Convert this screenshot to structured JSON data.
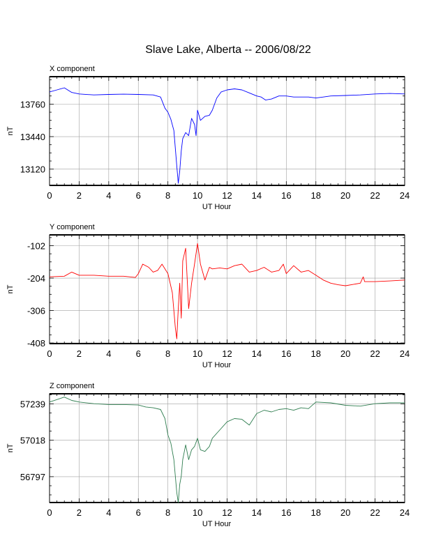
{
  "title": "Slave Lake, Alberta -- 2006/08/22",
  "chart_data": [
    {
      "type": "line",
      "component_label": "X component",
      "xlabel": "UT Hour",
      "ylabel": "nT",
      "xlim": [
        0,
        24
      ],
      "ylim": [
        12960,
        14030
      ],
      "x_ticks": [
        "0",
        "2",
        "4",
        "6",
        "8",
        "10",
        "12",
        "14",
        "16",
        "18",
        "20",
        "22",
        "24"
      ],
      "y_ticks": [
        {
          "value": 13120,
          "label": "13120"
        },
        {
          "value": 13440,
          "label": "13440"
        },
        {
          "value": 13760,
          "label": "13760"
        }
      ],
      "grid": true,
      "color": "#0000ff",
      "x": [
        0,
        0.5,
        1,
        1.5,
        2,
        3,
        4,
        5,
        6,
        7,
        7.5,
        7.8,
        8,
        8.2,
        8.4,
        8.6,
        8.7,
        8.8,
        8.9,
        9,
        9.2,
        9.4,
        9.6,
        9.8,
        9.9,
        10,
        10.2,
        10.5,
        10.8,
        11,
        11.3,
        11.6,
        12,
        12.5,
        13,
        13.5,
        14,
        14.3,
        14.6,
        15,
        15.5,
        16,
        16.5,
        17,
        17.5,
        18,
        18.5,
        19,
        20,
        21,
        22,
        23,
        24
      ],
      "y": [
        13880,
        13900,
        13920,
        13875,
        13860,
        13850,
        13855,
        13858,
        13855,
        13850,
        13830,
        13720,
        13680,
        13610,
        13500,
        13150,
        12980,
        13100,
        13300,
        13420,
        13480,
        13450,
        13620,
        13560,
        13450,
        13700,
        13600,
        13640,
        13650,
        13700,
        13820,
        13880,
        13900,
        13910,
        13900,
        13870,
        13840,
        13830,
        13800,
        13810,
        13840,
        13840,
        13830,
        13830,
        13830,
        13820,
        13830,
        13840,
        13845,
        13850,
        13860,
        13865,
        13860
      ]
    },
    {
      "type": "line",
      "component_label": "Y component",
      "xlabel": "UT Hour",
      "ylabel": "nT",
      "xlim": [
        0,
        24
      ],
      "ylim": [
        -410,
        -68
      ],
      "x_ticks": [
        "0",
        "2",
        "4",
        "6",
        "8",
        "10",
        "12",
        "14",
        "16",
        "18",
        "20",
        "22",
        "24"
      ],
      "y_ticks": [
        {
          "value": -102,
          "label": "-102"
        },
        {
          "value": -204,
          "label": "-204"
        },
        {
          "value": -306,
          "label": "-306"
        },
        {
          "value": -408,
          "label": "-408"
        }
      ],
      "grid": true,
      "color": "#ff0000",
      "x": [
        0,
        1,
        1.5,
        2,
        3,
        4,
        5,
        5.8,
        6,
        6.3,
        6.7,
        7,
        7.3,
        7.6,
        8,
        8.3,
        8.5,
        8.6,
        8.7,
        8.8,
        8.9,
        9,
        9.2,
        9.4,
        9.6,
        9.8,
        10,
        10.2,
        10.5,
        10.8,
        11,
        11.5,
        12,
        12.5,
        13,
        13.5,
        14,
        14.5,
        15,
        15.5,
        15.8,
        16,
        16.5,
        17,
        17.5,
        18,
        18.5,
        19,
        19.5,
        20,
        21,
        21.2,
        21.3,
        22,
        23,
        24
      ],
      "y": [
        -200,
        -198,
        -185,
        -195,
        -195,
        -198,
        -198,
        -202,
        -190,
        -160,
        -170,
        -185,
        -180,
        -160,
        -190,
        -250,
        -360,
        -395,
        -300,
        -220,
        -330,
        -150,
        -110,
        -300,
        -220,
        -160,
        -95,
        -160,
        -210,
        -170,
        -175,
        -172,
        -175,
        -165,
        -160,
        -185,
        -180,
        -170,
        -185,
        -180,
        -160,
        -190,
        -165,
        -185,
        -180,
        -195,
        -210,
        -220,
        -225,
        -228,
        -220,
        -200,
        -215,
        -215,
        -213,
        -210
      ]
    },
    {
      "type": "line",
      "component_label": "Z component",
      "xlabel": "UT Hour",
      "ylabel": "nT",
      "xlim": [
        0,
        24
      ],
      "ylim": [
        56640,
        57300
      ],
      "x_ticks": [
        "0",
        "2",
        "4",
        "6",
        "8",
        "10",
        "12",
        "14",
        "16",
        "18",
        "20",
        "22",
        "24"
      ],
      "y_ticks": [
        {
          "value": 56797,
          "label": "56797"
        },
        {
          "value": 57018,
          "label": "57018"
        },
        {
          "value": 57239,
          "label": "57239"
        }
      ],
      "grid": true,
      "color": "#2e7d4f",
      "x": [
        0,
        0.5,
        1,
        1.5,
        2,
        3,
        4,
        5,
        6,
        6.5,
        7,
        7.5,
        7.8,
        8,
        8.2,
        8.4,
        8.6,
        8.7,
        8.8,
        8.9,
        9,
        9.2,
        9.4,
        9.6,
        9.8,
        10,
        10.2,
        10.5,
        10.8,
        11,
        11.5,
        12,
        12.5,
        13,
        13.5,
        14,
        14.5,
        15,
        15.5,
        16,
        16.5,
        17,
        17.5,
        18,
        19,
        20,
        21,
        22,
        23,
        24
      ],
      "y": [
        57250,
        57265,
        57280,
        57260,
        57250,
        57240,
        57235,
        57235,
        57232,
        57220,
        57215,
        57205,
        57150,
        57050,
        57000,
        56900,
        56700,
        56600,
        56750,
        56800,
        56900,
        56990,
        56900,
        56960,
        56980,
        57030,
        56960,
        56950,
        56980,
        57030,
        57080,
        57130,
        57150,
        57145,
        57110,
        57180,
        57200,
        57190,
        57205,
        57210,
        57200,
        57215,
        57210,
        57250,
        57245,
        57230,
        57225,
        57240,
        57245,
        57245
      ]
    }
  ]
}
